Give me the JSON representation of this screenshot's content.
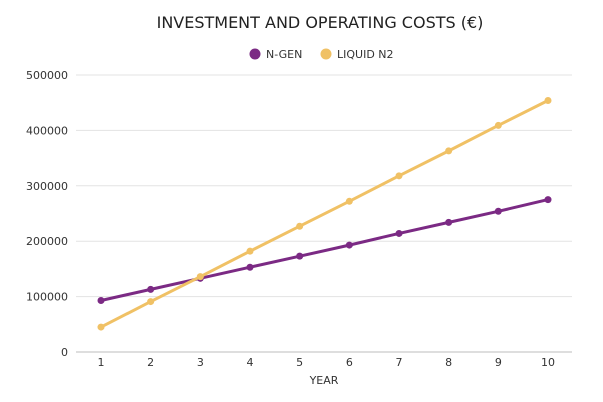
{
  "chart_data": {
    "type": "line",
    "title": "INVESTMENT AND OPERATING COSTS (€)",
    "xlabel": "YEAR",
    "ylabel": "",
    "x": [
      1,
      2,
      3,
      4,
      5,
      6,
      7,
      8,
      9,
      10
    ],
    "ylim": [
      0,
      500000
    ],
    "yticks": [
      "0",
      "100000",
      "200000",
      "300000",
      "400000",
      "500000"
    ],
    "grid": true,
    "legend_position": "top-center",
    "series": [
      {
        "name": "N-GEN",
        "color": "#7b2a84",
        "values": [
          93000,
          113000,
          133000,
          153000,
          173000,
          193000,
          214000,
          234000,
          254000,
          275000
        ]
      },
      {
        "name": "LIQUID N2",
        "color": "#f0c165",
        "values": [
          45000,
          91000,
          136000,
          182000,
          227000,
          272000,
          318000,
          363000,
          409000,
          454000
        ]
      }
    ]
  }
}
